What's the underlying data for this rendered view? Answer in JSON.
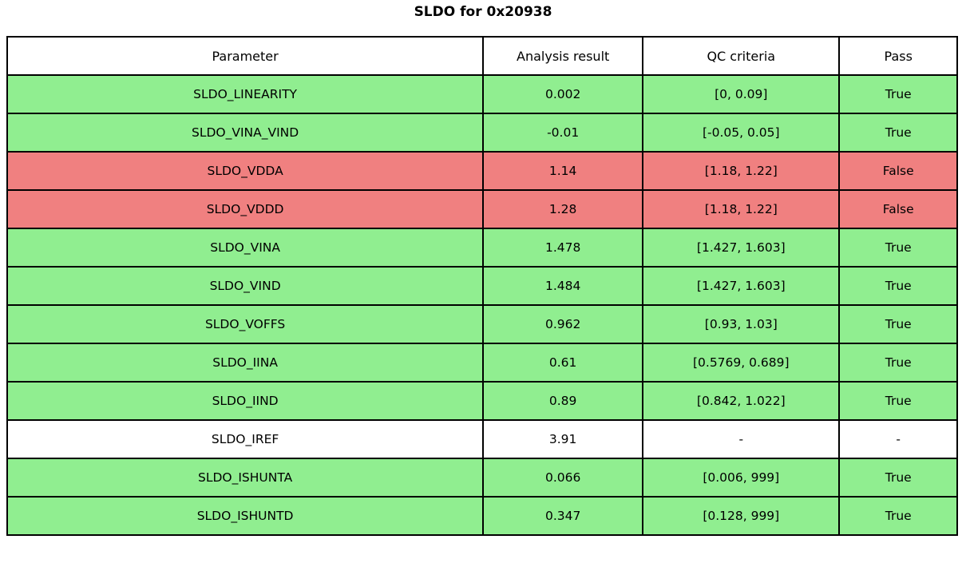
{
  "chart_data": {
    "type": "table",
    "title": "SLDO for 0x20938",
    "columns": [
      "Parameter",
      "Analysis result",
      "QC criteria",
      "Pass"
    ],
    "status_colors": {
      "pass": "#90EE90",
      "fail": "#F08080",
      "neutral": "#FFFFFF",
      "border": "#000000"
    },
    "rows": [
      {
        "parameter": "SLDO_LINEARITY",
        "result": "0.002",
        "criteria": "[0, 0.09]",
        "pass": "True",
        "status": "pass"
      },
      {
        "parameter": "SLDO_VINA_VIND",
        "result": "-0.01",
        "criteria": "[-0.05, 0.05]",
        "pass": "True",
        "status": "pass"
      },
      {
        "parameter": "SLDO_VDDA",
        "result": "1.14",
        "criteria": "[1.18, 1.22]",
        "pass": "False",
        "status": "fail"
      },
      {
        "parameter": "SLDO_VDDD",
        "result": "1.28",
        "criteria": "[1.18, 1.22]",
        "pass": "False",
        "status": "fail"
      },
      {
        "parameter": "SLDO_VINA",
        "result": "1.478",
        "criteria": "[1.427, 1.603]",
        "pass": "True",
        "status": "pass"
      },
      {
        "parameter": "SLDO_VIND",
        "result": "1.484",
        "criteria": "[1.427, 1.603]",
        "pass": "True",
        "status": "pass"
      },
      {
        "parameter": "SLDO_VOFFS",
        "result": "0.962",
        "criteria": "[0.93, 1.03]",
        "pass": "True",
        "status": "pass"
      },
      {
        "parameter": "SLDO_IINA",
        "result": "0.61",
        "criteria": "[0.5769, 0.689]",
        "pass": "True",
        "status": "pass"
      },
      {
        "parameter": "SLDO_IIND",
        "result": "0.89",
        "criteria": "[0.842, 1.022]",
        "pass": "True",
        "status": "pass"
      },
      {
        "parameter": "SLDO_IREF",
        "result": "3.91",
        "criteria": "-",
        "pass": "-",
        "status": "neutral"
      },
      {
        "parameter": "SLDO_ISHUNTA",
        "result": "0.066",
        "criteria": "[0.006, 999]",
        "pass": "True",
        "status": "pass"
      },
      {
        "parameter": "SLDO_ISHUNTD",
        "result": "0.347",
        "criteria": "[0.128, 999]",
        "pass": "True",
        "status": "pass"
      }
    ]
  }
}
